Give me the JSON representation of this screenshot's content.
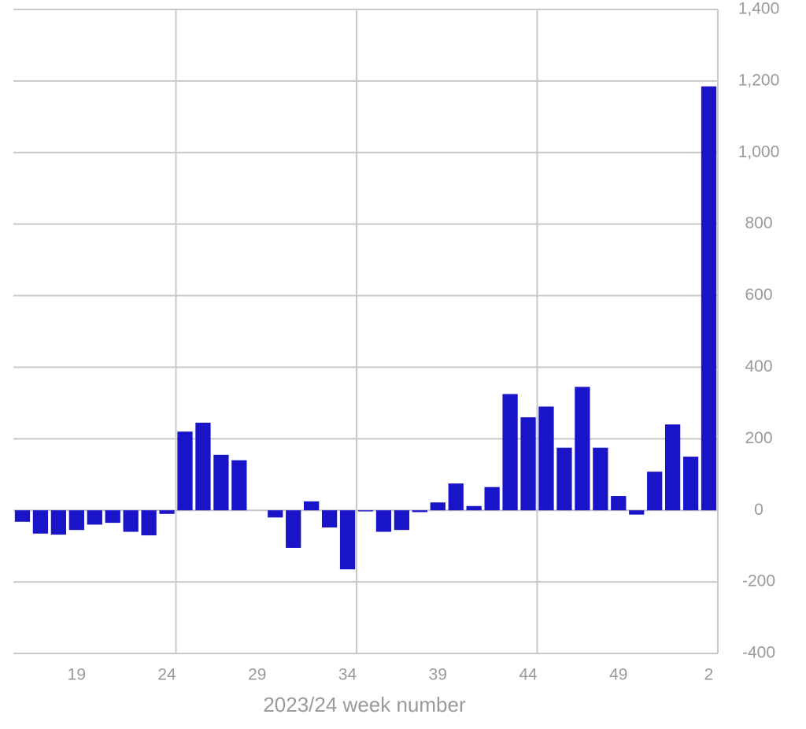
{
  "chart_data": {
    "type": "bar",
    "x_label": "2023/24 week number",
    "categories": [
      null,
      null,
      null,
      "19",
      null,
      null,
      null,
      null,
      "24",
      null,
      null,
      null,
      null,
      "29",
      null,
      null,
      null,
      null,
      "34",
      null,
      null,
      null,
      null,
      "39",
      null,
      null,
      null,
      null,
      "44",
      null,
      null,
      null,
      null,
      "49",
      null,
      null,
      null,
      null,
      "2"
    ],
    "values": [
      -32,
      -65,
      -68,
      -55,
      -40,
      -35,
      -60,
      -70,
      -10,
      220,
      245,
      155,
      140,
      0,
      -20,
      -105,
      25,
      -48,
      -165,
      -3,
      -60,
      -55,
      -5,
      22,
      75,
      12,
      65,
      325,
      260,
      290,
      175,
      345,
      175,
      40,
      -12,
      108,
      240,
      150,
      1185
    ],
    "color": "#1a14c8",
    "ylim": [
      -400,
      1400
    ],
    "yticks": [
      -400,
      -200,
      0,
      200,
      400,
      600,
      800,
      {
        "value": 1000,
        "label": "1,000"
      },
      {
        "value": 1200,
        "label": "1,200"
      },
      {
        "value": 1400,
        "label": "1,400"
      }
    ],
    "grid": true
  }
}
